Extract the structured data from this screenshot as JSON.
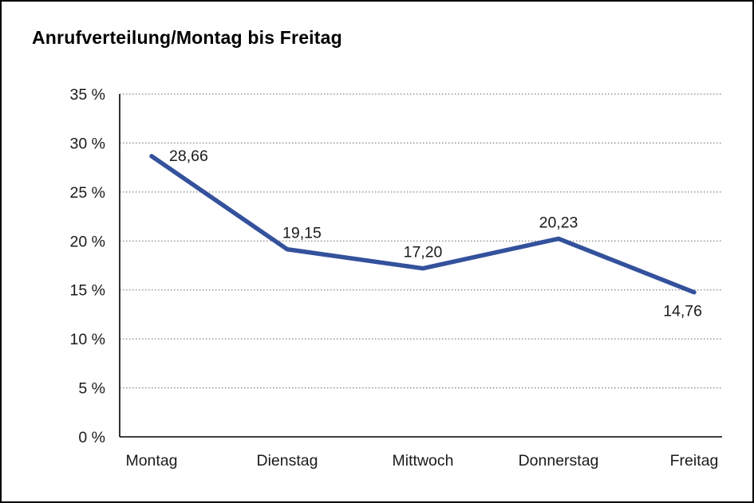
{
  "chart_data": {
    "type": "line",
    "title": "Anrufverteilung/Montag bis Freitag",
    "categories": [
      "Montag",
      "Dienstag",
      "Mittwoch",
      "Donnerstag",
      "Freitag"
    ],
    "values": [
      28.66,
      19.15,
      17.2,
      20.23,
      14.76
    ],
    "point_labels": [
      "28,66",
      "19,15",
      "17,20",
      "20,23",
      "14,76"
    ],
    "ytick_labels": [
      "0 %",
      "5 %",
      "10 %",
      "15 %",
      "20 %",
      "25 %",
      "30 %",
      "35 %"
    ],
    "ylim": [
      0,
      35
    ],
    "ytick_step": 5,
    "grid": true,
    "legend": "none",
    "line_color": "#34519C",
    "axis_color": "#000000",
    "grid_color": "#666666",
    "text_color": "#1a1a1a"
  }
}
